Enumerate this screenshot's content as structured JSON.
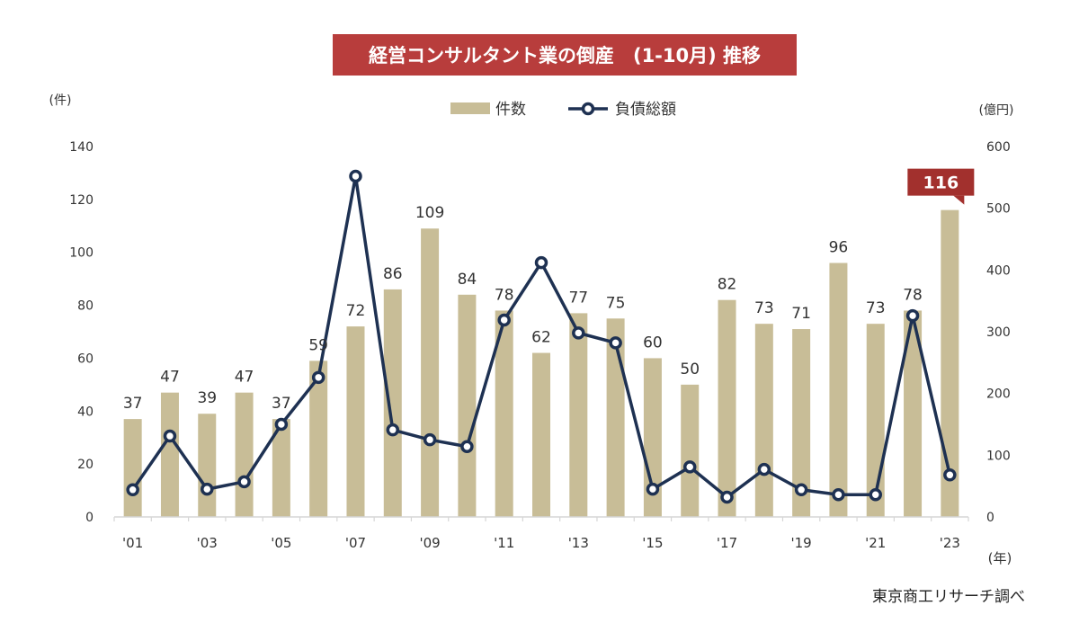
{
  "chart_data": {
    "type": "bar+line",
    "title": "経営コンサルタント業の倒産　(1-10月) 推移",
    "source": "東京商工リサーチ調べ",
    "y_left_unit": "(件)",
    "y_right_unit": "(億円)",
    "x_unit": "(年)",
    "y_left_range": [
      0,
      140
    ],
    "y_left_ticks": [
      "0",
      "20",
      "40",
      "60",
      "80",
      "100",
      "120",
      "140"
    ],
    "y_right_range": [
      0,
      600
    ],
    "y_right_ticks": [
      "0",
      "100",
      "200",
      "300",
      "400",
      "500",
      "600"
    ],
    "categories": [
      "'01",
      "'02",
      "'03",
      "'04",
      "'05",
      "'06",
      "'07",
      "'08",
      "'09",
      "'10",
      "'11",
      "'12",
      "'13",
      "'14",
      "'15",
      "'16",
      "'17",
      "'18",
      "'19",
      "'20",
      "'21",
      "'22",
      "'23"
    ],
    "x_tick_labels": [
      "'01",
      "",
      "'03",
      "",
      "'05",
      "",
      "'07",
      "",
      "'09",
      "",
      "'11",
      "",
      "'13",
      "",
      "'15",
      "",
      "'17",
      "",
      "'19",
      "",
      "'21",
      "",
      "'23"
    ],
    "series": [
      {
        "name": "件数",
        "axis": "left",
        "kind": "bar",
        "values": [
          37,
          47,
          39,
          47,
          37,
          59,
          72,
          86,
          109,
          84,
          78,
          62,
          77,
          75,
          60,
          50,
          82,
          73,
          71,
          96,
          73,
          78,
          116
        ],
        "labels": [
          "37",
          "47",
          "39",
          "47",
          "37",
          "59",
          "72",
          "86",
          "109",
          "84",
          "78",
          "62",
          "77",
          "75",
          "60",
          "50",
          "82",
          "73",
          "71",
          "96",
          "73",
          "78",
          "116"
        ]
      },
      {
        "name": "負債総額",
        "axis": "right",
        "kind": "line",
        "values": [
          44,
          131,
          45,
          57,
          150,
          226,
          552,
          141,
          125,
          114,
          319,
          412,
          298,
          282,
          45,
          81,
          32,
          77,
          44,
          36,
          36,
          326,
          68
        ]
      }
    ],
    "highlight": {
      "category": "'23",
      "label": "116"
    },
    "colors": {
      "bar": "#c8bd97",
      "line": "#1e3152",
      "title_bg": "#b83d3c",
      "highlight_bg": "#a2302d",
      "text": "#333333",
      "axis": "#d6d6d6"
    }
  }
}
